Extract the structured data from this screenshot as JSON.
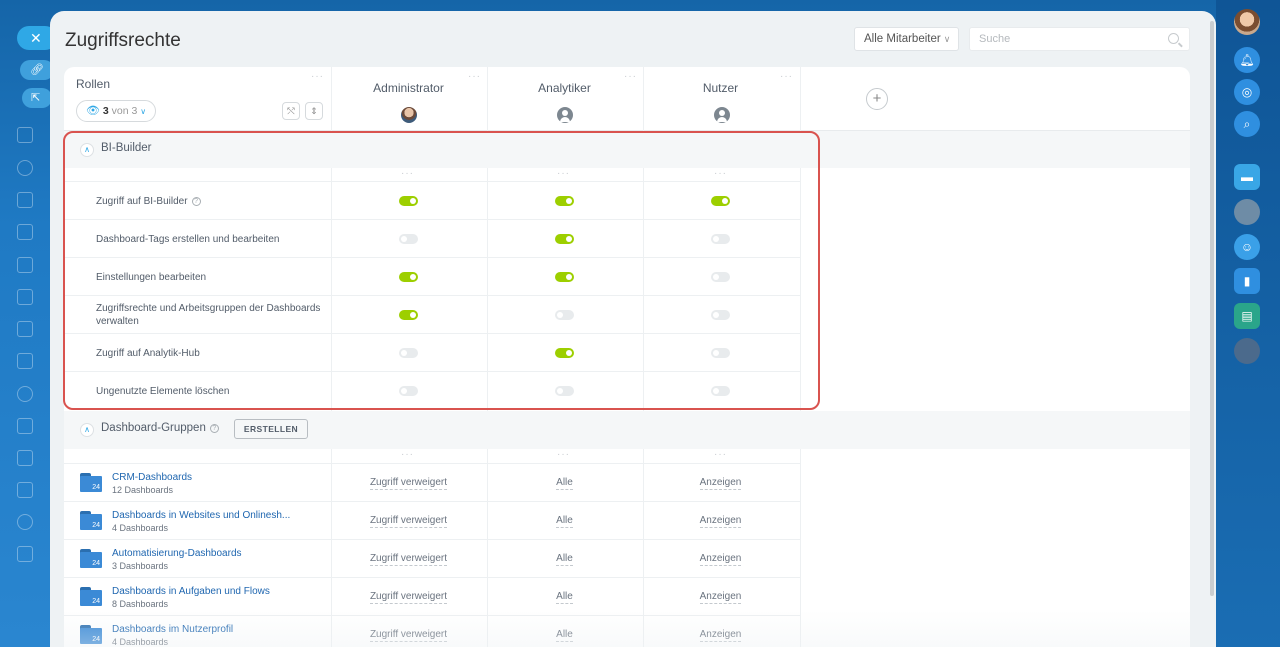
{
  "page": {
    "title": "Zugriffsrechte",
    "filter_label": "Alle Mitarbeiter",
    "search_placeholder": "Suche"
  },
  "header": {
    "roles_label": "Rollen",
    "roles_visible": "3",
    "roles_total_text": "von 3",
    "roles": [
      {
        "name": "Administrator",
        "avatar": "photo"
      },
      {
        "name": "Analytiker",
        "avatar": "generic-user-icon"
      },
      {
        "name": "Nutzer",
        "avatar": "generic-user-icon"
      }
    ]
  },
  "bi_builder": {
    "title": "BI-Builder",
    "rows": [
      {
        "label": "Zugriff auf BI-Builder",
        "has_help": true,
        "values": [
          true,
          true,
          true
        ]
      },
      {
        "label": "Dashboard-Tags erstellen und bearbeiten",
        "values": [
          false,
          true,
          false
        ]
      },
      {
        "label": "Einstellungen bearbeiten",
        "values": [
          true,
          true,
          false
        ]
      },
      {
        "label": "Zugriffsrechte und Arbeitsgruppen der Dashboards verwalten",
        "values": [
          true,
          false,
          false
        ]
      },
      {
        "label": "Zugriff auf Analytik-Hub",
        "values": [
          false,
          true,
          false
        ]
      },
      {
        "label": "Ungenutzte Elemente löschen",
        "values": [
          false,
          false,
          false
        ]
      }
    ]
  },
  "dashboard_groups": {
    "title": "Dashboard-Gruppen",
    "create_label": "ERSTELLEN",
    "folder_badge": "24",
    "rows": [
      {
        "name": "CRM-Dashboards",
        "sub": "12 Dashboards",
        "values": [
          "Zugriff verweigert",
          "Alle",
          "Anzeigen"
        ]
      },
      {
        "name": "Dashboards in Websites und Onlinesh...",
        "sub": "4 Dashboards",
        "values": [
          "Zugriff verweigert",
          "Alle",
          "Anzeigen"
        ]
      },
      {
        "name": "Automatisierung-Dashboards",
        "sub": "3 Dashboards",
        "values": [
          "Zugriff verweigert",
          "Alle",
          "Anzeigen"
        ]
      },
      {
        "name": "Dashboards in Aufgaben und Flows",
        "sub": "8 Dashboards",
        "values": [
          "Zugriff verweigert",
          "Alle",
          "Anzeigen"
        ]
      },
      {
        "name": "Dashboards im Nutzerprofil",
        "sub": "4 Dashboards",
        "values": [
          "Zugriff verweigert",
          "Alle",
          "Anzeigen"
        ]
      }
    ]
  },
  "colors": {
    "toggle_on": "#9dcf00",
    "toggle_off": "#e8ebed",
    "highlight": "#d9534f",
    "link": "#2067b0"
  }
}
